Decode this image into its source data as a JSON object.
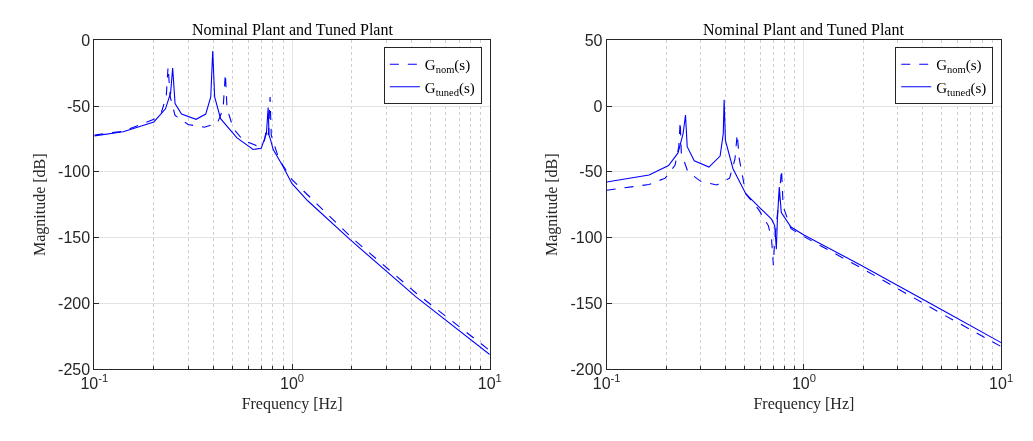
{
  "chart_data": [
    {
      "type": "line",
      "title": "Nominal Plant and Tuned Plant",
      "xlabel": "Frequency [Hz]",
      "ylabel": "Magnitude [dB]",
      "log": "x",
      "grid": true,
      "legend": "top right",
      "xlim": [
        0.1,
        10
      ],
      "xticks": [
        {
          "value": 0.1,
          "label": "10$^{-1}$"
        },
        {
          "value": 1,
          "label": "10$^{0}$"
        },
        {
          "value": 10,
          "label": "10$^{1}$"
        }
      ],
      "ylim": [
        -250,
        0
      ],
      "yticks": [
        -250,
        -200,
        -150,
        -100,
        -50,
        0
      ],
      "series": [
        {
          "name": "G$_{nom}$(s)",
          "color": "#0000ff",
          "line_style": "dashed",
          "x": [
            0.1,
            0.14,
            0.2,
            0.218,
            0.231,
            0.236,
            0.242,
            0.256,
            0.298,
            0.36,
            0.419,
            0.448,
            0.46,
            0.469,
            0.505,
            0.566,
            0.66,
            0.724,
            0.742,
            0.76,
            0.774,
            0.785,
            0.8,
            0.857,
            1.0,
            2.0,
            4.22,
            10
          ],
          "values": [
            -72,
            -69,
            -60,
            -55,
            -43,
            -20,
            -43,
            -57,
            -64,
            -66,
            -63,
            -52,
            -25,
            -52,
            -67,
            -76,
            -80,
            -77,
            -67,
            -72,
            -43,
            -72,
            -76,
            -90,
            -106,
            -150,
            -192,
            -236
          ]
        },
        {
          "name": "G$_{tuned}$(s)",
          "color": "#0000ff",
          "line_style": "solid",
          "x": [
            0.1,
            0.14,
            0.2,
            0.229,
            0.243,
            0.249,
            0.256,
            0.276,
            0.327,
            0.366,
            0.388,
            0.397,
            0.406,
            0.435,
            0.525,
            0.635,
            0.698,
            0.742,
            0.757,
            0.765,
            0.78,
            0.803,
            0.893,
            1.0,
            1.2,
            1.98,
            4.22,
            10
          ],
          "values": [
            -72.6,
            -69.5,
            -62,
            -52,
            -40,
            -21,
            -48,
            -56,
            -60,
            -56,
            -43,
            -8,
            -43,
            -59.5,
            -74,
            -83,
            -82,
            -71,
            -51,
            -72,
            -76,
            -83,
            -95,
            -109,
            -122,
            -152,
            -195,
            -239
          ]
        }
      ]
    },
    {
      "type": "line",
      "title": "Nominal Plant and Tuned Plant",
      "xlabel": "Frequency [Hz]",
      "ylabel": "Magnitude [dB]",
      "log": "x",
      "grid": true,
      "legend": "top right",
      "xlim": [
        0.1,
        10
      ],
      "xticks": [
        {
          "value": 0.1,
          "label": "10$^{-1}$"
        },
        {
          "value": 1,
          "label": "10$^{0}$"
        },
        {
          "value": 10,
          "label": "10$^{1}$"
        }
      ],
      "ylim": [
        -200,
        50
      ],
      "yticks": [
        -200,
        -150,
        -100,
        -50,
        0,
        50
      ],
      "series": [
        {
          "name": "G$_{nom}$(s)",
          "color": "#0000ff",
          "line_style": "dashed",
          "x": [
            0.1,
            0.164,
            0.198,
            0.222,
            0.232,
            0.236,
            0.239,
            0.258,
            0.3,
            0.362,
            0.42,
            0.447,
            0.459,
            0.47,
            0.508,
            0.59,
            0.66,
            0.685,
            0.7,
            0.71,
            0.75,
            0.77,
            0.785,
            0.86,
            1.0,
            2.0,
            5.0,
            10
          ],
          "values": [
            -64,
            -59.6,
            -54.8,
            -45,
            -30.8,
            -11.5,
            -35.6,
            -50,
            -57.2,
            -60,
            -54.8,
            -40.4,
            -21.2,
            -40,
            -66.8,
            -78.8,
            -90.9,
            -100.5,
            -121,
            -103,
            -69,
            -48,
            -76.4,
            -93.3,
            -99.3,
            -124,
            -158,
            -183
          ]
        },
        {
          "name": "G$_{tuned}$(s)",
          "color": "#0000ff",
          "line_style": "solid",
          "x": [
            0.1,
            0.164,
            0.206,
            0.23,
            0.244,
            0.251,
            0.256,
            0.278,
            0.33,
            0.376,
            0.39,
            0.394,
            0.4,
            0.437,
            0.508,
            0.59,
            0.685,
            0.711,
            0.725,
            0.734,
            0.75,
            0.768,
            0.86,
            1.0,
            2.0,
            5.0,
            10
          ],
          "values": [
            -57.7,
            -52.4,
            -45.2,
            -35.6,
            -21,
            -6.7,
            -30.8,
            -41.6,
            -46.4,
            -38,
            -21,
            4.8,
            -26,
            -47.6,
            -66.8,
            -76.4,
            -86,
            -90.9,
            -108.9,
            -86,
            -61.5,
            -81,
            -92,
            -98,
            -122,
            -155,
            -180
          ]
        }
      ]
    }
  ]
}
